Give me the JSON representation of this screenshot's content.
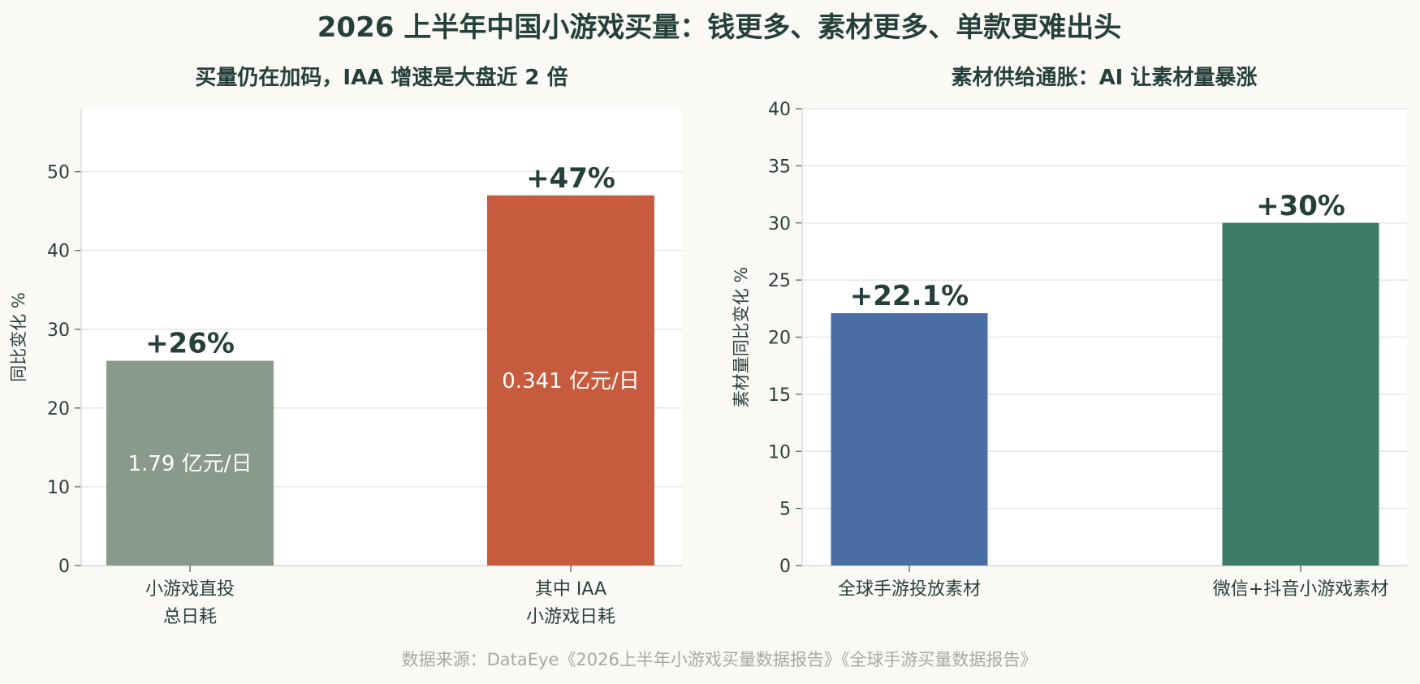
{
  "title": "2026 上半年中国小游戏买量：钱更多、素材更多、单款更难出头",
  "source": "数据来源：DataEye《2026上半年小游戏买量数据报告》《全球手游买量数据报告》",
  "chart_data": [
    {
      "type": "bar",
      "title": "买量仍在加码，IAA 增速是大盘近 2 倍",
      "ylabel": "同比变化 %",
      "ylim": [
        0,
        58
      ],
      "yticks": [
        0,
        10,
        20,
        30,
        40,
        50
      ],
      "grid": true,
      "categories": [
        [
          "小游戏直投",
          "总日耗"
        ],
        [
          "其中 IAA",
          "小游戏日耗"
        ]
      ],
      "values": [
        26,
        47
      ],
      "value_labels": [
        "+26%",
        "+47%"
      ],
      "inbar_labels": [
        "1.79 亿元/日",
        "0.341 亿元/日"
      ],
      "colors": [
        "#89998c",
        "#c65b3e"
      ]
    },
    {
      "type": "bar",
      "title": "素材供给通胀：AI 让素材量暴涨",
      "ylabel": "素材量同比变化 %",
      "ylim": [
        0,
        40
      ],
      "yticks": [
        0,
        5,
        10,
        15,
        20,
        25,
        30,
        35,
        40
      ],
      "grid": true,
      "categories": [
        [
          "全球手游投放素材"
        ],
        [
          "微信+抖音小游戏素材"
        ]
      ],
      "values": [
        22.1,
        30
      ],
      "value_labels": [
        "+22.1%",
        "+30%"
      ],
      "colors": [
        "#4a6ea3",
        "#3d7c69"
      ]
    }
  ]
}
